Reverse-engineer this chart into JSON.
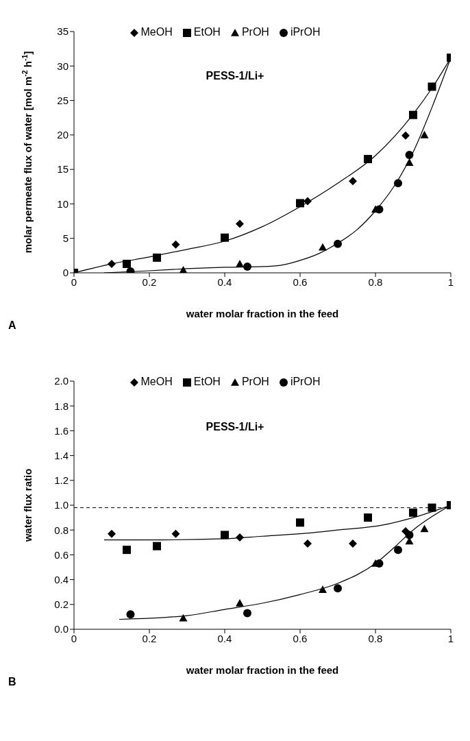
{
  "chart_data": [
    {
      "type": "scatter",
      "xlabel": "water molar fraction in the feed",
      "ylabel": "molar permeate flux of water [mol m$^{-2}$ h$^{-1}$]",
      "annotations": [
        "PESS-1/Li+",
        "A"
      ],
      "xlim": [
        0,
        1
      ],
      "xticks": [
        0,
        0.2,
        0.4,
        0.6,
        0.8,
        1
      ],
      "ylim": [
        0,
        35
      ],
      "yticks": [
        0,
        5,
        10,
        15,
        20,
        25,
        30,
        35
      ],
      "legend": "top",
      "series": [
        {
          "name": "MeOH",
          "color": "#000000",
          "marker": "diamond",
          "x": [
            0.1,
            0.27,
            0.44,
            0.62,
            0.74,
            0.88
          ],
          "values": [
            1.3,
            4.1,
            7.1,
            10.4,
            13.3,
            19.9
          ]
        },
        {
          "name": "EtOH",
          "color": "#000000",
          "marker": "square",
          "x": [
            0,
            0.14,
            0.22,
            0.4,
            0.6,
            0.78,
            0.9,
            0.95,
            1
          ],
          "values": [
            0,
            1.3,
            2.2,
            5.1,
            10.1,
            16.5,
            22.9,
            27,
            31.2
          ]
        },
        {
          "name": "PrOH",
          "color": "#000000",
          "marker": "triangle",
          "x": [
            0.29,
            0.44,
            0.66,
            0.8,
            0.89,
            0.93
          ],
          "values": [
            0.4,
            1.3,
            3.7,
            9.2,
            16,
            20
          ]
        },
        {
          "name": "iPrOH",
          "color": "#000000",
          "marker": "circle",
          "x": [
            0.15,
            0.46,
            0.7,
            0.81,
            0.86,
            0.89
          ],
          "values": [
            0.2,
            0.9,
            4.2,
            9.2,
            13,
            17.1
          ]
        },
        {
          "type": "line",
          "color": "#000000",
          "marker": "none",
          "x": [
            0,
            0.1,
            0.2,
            0.3,
            0.4,
            0.5,
            0.6,
            0.7,
            0.8,
            0.9,
            0.95,
            1
          ],
          "values": [
            0,
            1.3,
            2.3,
            3.4,
            4.6,
            6.7,
            9.6,
            13,
            17,
            23,
            26.8,
            31.2
          ]
        },
        {
          "type": "line",
          "color": "#000000",
          "marker": "none",
          "x": [
            0.08,
            0.2,
            0.3,
            0.4,
            0.5,
            0.55,
            0.6,
            0.65,
            0.7,
            0.75,
            0.8,
            0.85,
            0.9,
            0.95,
            1
          ],
          "values": [
            0,
            0.3,
            0.6,
            0.8,
            0.9,
            1.1,
            1.8,
            2.8,
            4.3,
            6.2,
            9,
            12.6,
            17.5,
            24,
            31.2
          ]
        }
      ]
    },
    {
      "type": "scatter",
      "xlabel": "water molar fraction in the feed",
      "ylabel": "water flux ratio",
      "annotations": [
        "PESS-1/Li+",
        "B"
      ],
      "xlim": [
        0,
        1
      ],
      "xticks": [
        0,
        0.2,
        0.4,
        0.6,
        0.8,
        1
      ],
      "ylim": [
        0,
        2
      ],
      "yticks": [
        {
          "value": 0,
          "label": "0.0"
        },
        {
          "value": 0.2,
          "label": "0.2"
        },
        {
          "value": 0.4,
          "label": "0.4"
        },
        {
          "value": 0.6,
          "label": "0.6"
        },
        {
          "value": 0.8,
          "label": "0.8"
        },
        {
          "value": 1,
          "label": "1.0"
        },
        {
          "value": 1.2,
          "label": "1.2"
        },
        {
          "value": 1.4,
          "label": "1.4"
        },
        {
          "value": 1.6,
          "label": "1.6"
        },
        {
          "value": 1.8,
          "label": "1.8"
        },
        {
          "value": 2,
          "label": "2.0"
        }
      ],
      "legend": "top",
      "ref_lines": [
        {
          "axis": "y",
          "value": 0.98,
          "color": "#000000",
          "line_style": "dashed"
        }
      ],
      "series": [
        {
          "name": "MeOH",
          "color": "#000000",
          "marker": "diamond",
          "x": [
            0.1,
            0.27,
            0.44,
            0.62,
            0.74,
            0.88
          ],
          "values": [
            0.77,
            0.77,
            0.74,
            0.69,
            0.69,
            0.79
          ]
        },
        {
          "name": "EtOH",
          "color": "#000000",
          "marker": "square",
          "x": [
            0.14,
            0.22,
            0.4,
            0.6,
            0.78,
            0.9,
            0.95,
            1
          ],
          "values": [
            0.64,
            0.67,
            0.76,
            0.86,
            0.9,
            0.94,
            0.98,
            1
          ]
        },
        {
          "name": "PrOH",
          "color": "#000000",
          "marker": "triangle",
          "x": [
            0.29,
            0.44,
            0.66,
            0.8,
            0.89,
            0.93
          ],
          "values": [
            0.09,
            0.21,
            0.32,
            0.53,
            0.71,
            0.81
          ]
        },
        {
          "name": "iPrOH",
          "color": "#000000",
          "marker": "circle",
          "x": [
            0.15,
            0.46,
            0.7,
            0.81,
            0.86,
            0.89
          ],
          "values": [
            0.12,
            0.13,
            0.33,
            0.53,
            0.64,
            0.76
          ]
        },
        {
          "type": "line",
          "color": "#000000",
          "marker": "none",
          "x": [
            0.08,
            0.2,
            0.4,
            0.5,
            0.6,
            0.7,
            0.82,
            0.9,
            1
          ],
          "values": [
            0.72,
            0.72,
            0.73,
            0.75,
            0.77,
            0.8,
            0.84,
            0.9,
            1
          ]
        },
        {
          "type": "line",
          "color": "#000000",
          "marker": "none",
          "x": [
            0.12,
            0.3,
            0.4,
            0.5,
            0.6,
            0.7,
            0.8,
            0.85,
            0.9,
            1
          ],
          "values": [
            0.08,
            0.11,
            0.16,
            0.21,
            0.28,
            0.37,
            0.53,
            0.66,
            0.8,
            1
          ]
        }
      ]
    }
  ]
}
